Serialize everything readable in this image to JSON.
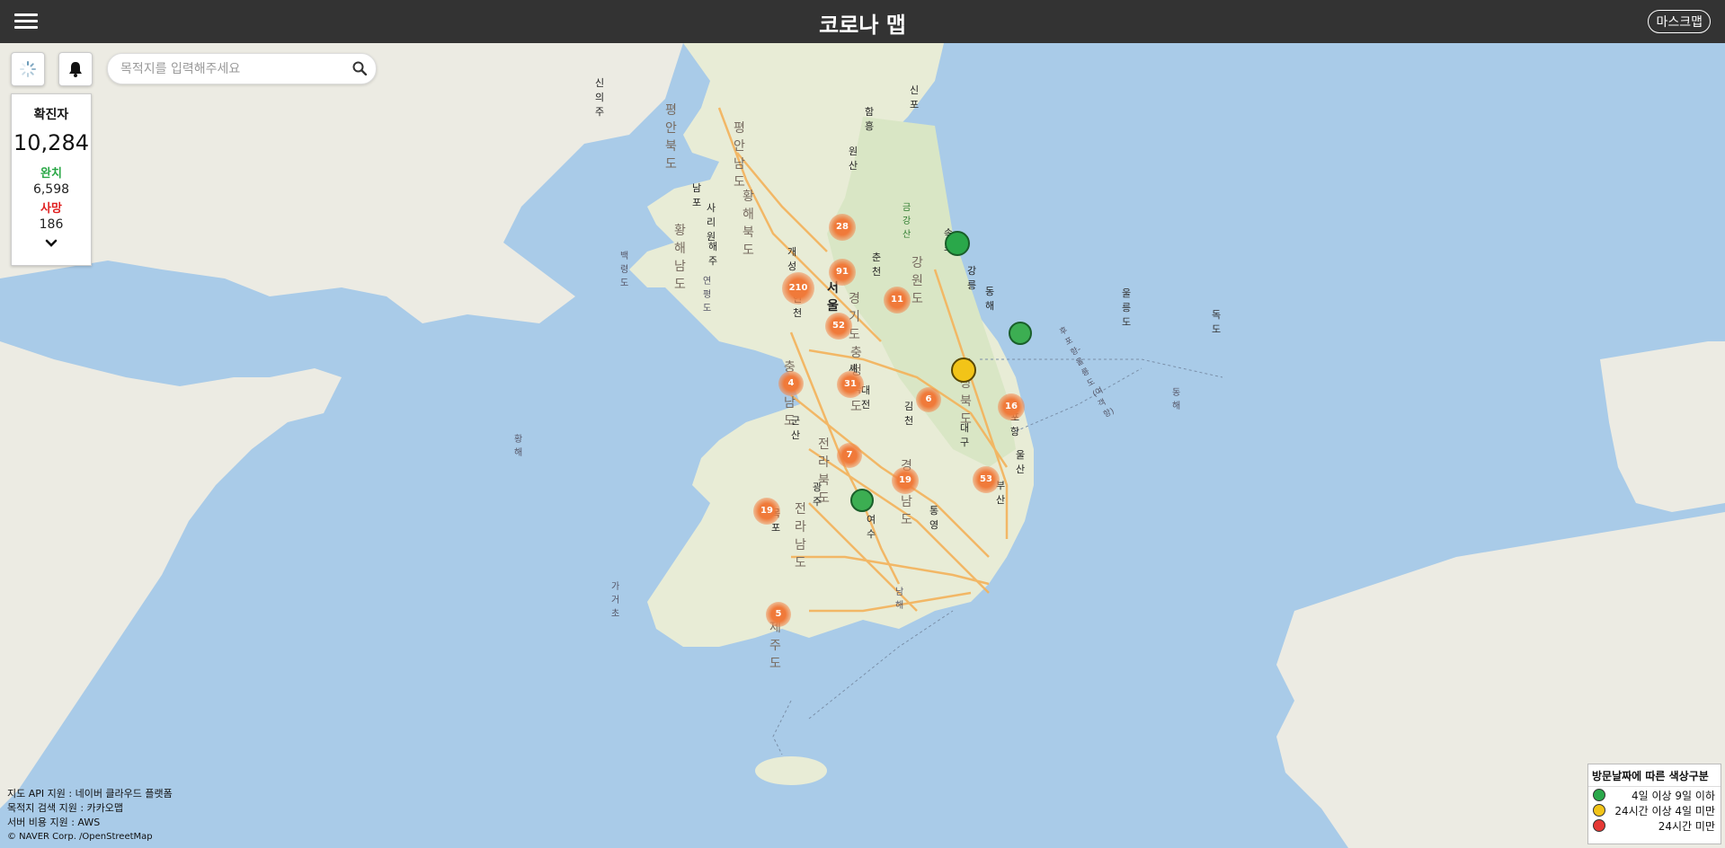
{
  "header": {
    "title": "코로나 맵",
    "mask_button": "마스크맵",
    "menu_icon": "hamburger-menu-icon"
  },
  "controls": {
    "refresh_icon": "loading-spinner-icon",
    "bell_icon": "bell-icon"
  },
  "search": {
    "placeholder": "목적지를 입력해주세요",
    "value": "",
    "icon": "search-icon"
  },
  "stats": {
    "confirmed_label": "확진자",
    "confirmed_value": "10,284",
    "recovered_label": "완치",
    "recovered_value": "6,598",
    "death_label": "사망",
    "death_value": "186",
    "expand_icon": "chevron-down-icon"
  },
  "map_labels": {
    "pyeongan_n": "평안북도",
    "pyeongan_s": "평안남도",
    "hwanghae_n": "황해북도",
    "hwanghae_s": "황해남도",
    "sinuiju": "신의주",
    "hamheung": "함흥",
    "sinpo": "신포",
    "wonsan": "원산",
    "nampo": "남포",
    "sariwon": "사리원",
    "haeju": "해주",
    "kaesong": "개성",
    "geumgangsan": "금강산",
    "sokcho": "속초",
    "chuncheon": "춘천",
    "gangwon": "강원도",
    "gangneung": "강릉",
    "donghae": "동해",
    "ulleungdo": "울릉도",
    "dokdo": "독도",
    "baengnyeongdo": "백령도",
    "yeonpyeongdo": "연평도",
    "seoul": "서울",
    "incheon": "인천",
    "gyeonggi": "경기도",
    "chungbuk": "충청북도",
    "chungnam": "충청남도",
    "sejong": "세종",
    "daejeon": "대전",
    "gyeongbuk": "경상북도",
    "gimcheon": "김천",
    "daegu": "대구",
    "pohang": "포항",
    "ulsan": "울산",
    "busan": "부산",
    "gunsan": "군산",
    "jeonbuk": "전라북도",
    "gyeongnam": "경상남도",
    "gwangju": "광주",
    "jeonnam": "전라남도",
    "yeosu": "여수",
    "tongyeong": "통영",
    "mokpo": "목포",
    "jeju": "제주도",
    "gageodo": "가거초",
    "yellow_sea": "황해",
    "east_sea": "동해",
    "south_sea": "남해",
    "hupo": "후포항-울릉도(여객항)"
  },
  "clusters": [
    {
      "name": "cluster-28",
      "count": "28"
    },
    {
      "name": "cluster-91",
      "count": "91"
    },
    {
      "name": "cluster-210",
      "count": "210"
    },
    {
      "name": "cluster-11",
      "count": "11"
    },
    {
      "name": "cluster-52",
      "count": "52"
    },
    {
      "name": "cluster-4",
      "count": "4"
    },
    {
      "name": "cluster-31",
      "count": "31"
    },
    {
      "name": "cluster-6",
      "count": "6"
    },
    {
      "name": "cluster-16",
      "count": "16"
    },
    {
      "name": "cluster-7",
      "count": "7"
    },
    {
      "name": "cluster-19a",
      "count": "19"
    },
    {
      "name": "cluster-53",
      "count": "53"
    },
    {
      "name": "cluster-19b",
      "count": "19"
    },
    {
      "name": "cluster-5",
      "count": "5"
    }
  ],
  "credits": {
    "line1": "지도 API 지원 : 네이버 클라우드 플랫폼",
    "line2": "목적지 검색 지원 : 카카오맵",
    "line3": "서버 비용 지원 : AWS",
    "line4": "© NAVER Corp. /OpenStreetMap"
  },
  "legend": {
    "title": "방문날짜에 따른 색상구분",
    "items": [
      {
        "label": "4일 이상 9일 이하",
        "color": "#2aa84a"
      },
      {
        "label": "24시간 이상 4일 미만",
        "color": "#f2c418"
      },
      {
        "label": "24시간 미만",
        "color": "#e53935"
      }
    ]
  },
  "colors": {
    "header_bg": "#333333",
    "sea": "#a9cbe8",
    "land": "#f1efe8",
    "cluster": "#f28a50"
  }
}
